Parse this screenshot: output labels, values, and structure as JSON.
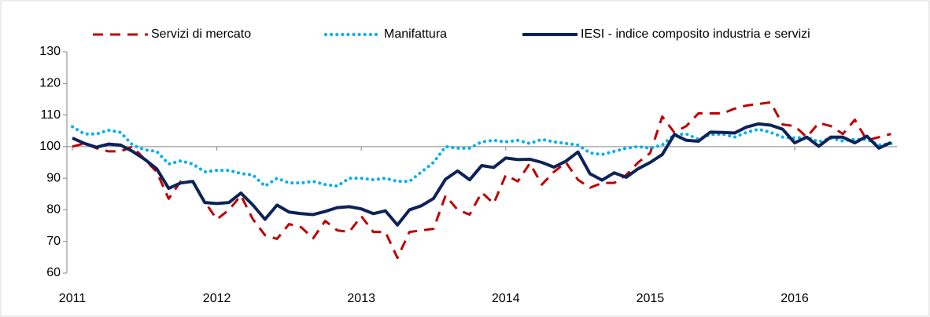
{
  "chart_data": {
    "type": "line",
    "categories": [
      "2011",
      null,
      null,
      null,
      null,
      null,
      null,
      null,
      null,
      null,
      null,
      null,
      "2012",
      null,
      null,
      null,
      null,
      null,
      null,
      null,
      null,
      null,
      null,
      null,
      "2013",
      null,
      null,
      null,
      null,
      null,
      null,
      null,
      null,
      null,
      null,
      null,
      "2014",
      null,
      null,
      null,
      null,
      null,
      null,
      null,
      null,
      null,
      null,
      null,
      "2015",
      null,
      null,
      null,
      null,
      null,
      null,
      null,
      null,
      null,
      null,
      null,
      "2016",
      null,
      null,
      null,
      null,
      null,
      null,
      null,
      null
    ],
    "series": [
      {
        "name": "Servizi di mercato",
        "color": "#c00000",
        "style": "dashed",
        "values": [
          100,
          101,
          99.5,
          98.5,
          98.5,
          100,
          96,
          92,
          83.5,
          89,
          89,
          82.5,
          77,
          80,
          84.5,
          77,
          72,
          70.8,
          75.5,
          74.5,
          71,
          76.5,
          73.5,
          73,
          78,
          73,
          73,
          64.8,
          73,
          73.5,
          74,
          84.5,
          80,
          78.5,
          85.5,
          82,
          91,
          89,
          94.7,
          88,
          92,
          95,
          89.5,
          87,
          88.5,
          88.5,
          91,
          95,
          98,
          109.5,
          104.5,
          106.5,
          110.5,
          110.5,
          110.5,
          112,
          113,
          113.5,
          114,
          107,
          106.5,
          103,
          107.5,
          106.5,
          104,
          108.5,
          102,
          103,
          104
        ]
      },
      {
        "name": "Manifattura",
        "color": "#00b0f0",
        "style": "dotted",
        "values": [
          106.3,
          104,
          104,
          105.2,
          104.5,
          100.5,
          99,
          98.5,
          94.5,
          95.5,
          94.5,
          92,
          92.5,
          92.5,
          91.5,
          91,
          87.5,
          90,
          88.5,
          88.5,
          89,
          88,
          87.5,
          90,
          90,
          89.5,
          90,
          89,
          89,
          92,
          95,
          100,
          99.5,
          99.5,
          101.5,
          102,
          101.5,
          102,
          101,
          102.3,
          101.5,
          101,
          100.5,
          98,
          97.5,
          98.5,
          99.5,
          100,
          99.5,
          100.5,
          103.8,
          104,
          102.3,
          103.8,
          104,
          103,
          104.5,
          105.5,
          104.5,
          103,
          102.7,
          103,
          101.5,
          102.7,
          101.8,
          102.3,
          102.3,
          100.5,
          101
        ]
      },
      {
        "name": "IESI - indice composito industria e servizi",
        "color": "#0d2357",
        "style": "solid",
        "values": [
          102.7,
          101,
          99.8,
          100.8,
          100.5,
          98.5,
          96,
          93,
          86.8,
          88.5,
          89,
          82.3,
          82,
          82.3,
          85.3,
          81.5,
          77,
          81.5,
          79.3,
          78.8,
          78.5,
          79.5,
          80.7,
          81,
          80.3,
          78.8,
          79.7,
          75.2,
          80,
          81.3,
          83.6,
          89.7,
          92.3,
          89.5,
          94,
          93.4,
          96.4,
          95.9,
          96,
          95,
          93.5,
          95.4,
          98.3,
          91.4,
          89.4,
          91.7,
          90.3,
          93,
          95,
          97.5,
          103.8,
          102,
          101.7,
          104.6,
          104.5,
          104.3,
          106.2,
          107.2,
          106.8,
          105.5,
          101.2,
          103,
          100.1,
          103,
          103,
          101.2,
          103.3,
          99.5,
          101.3
        ]
      }
    ],
    "ylim": [
      60,
      130
    ],
    "yticks": [
      60,
      70,
      80,
      90,
      100,
      110,
      120,
      130
    ],
    "x_axis_crosses": 100,
    "grid": false,
    "legend": "top"
  }
}
